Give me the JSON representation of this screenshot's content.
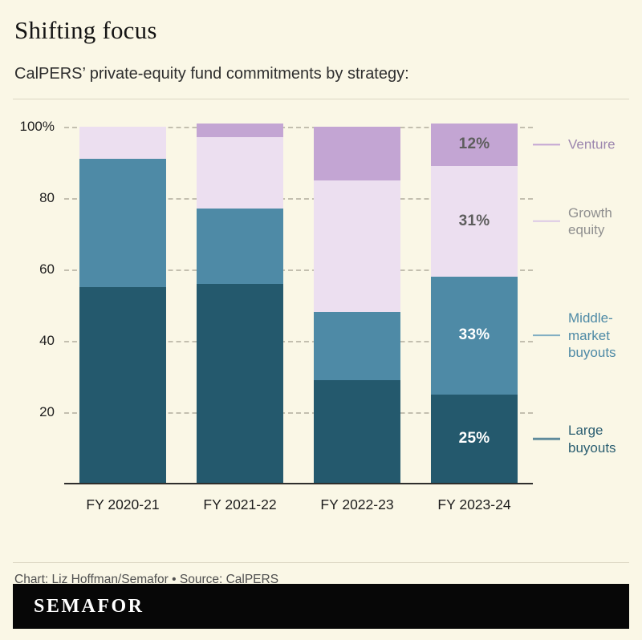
{
  "header": {
    "title": "Shifting focus",
    "subtitle": "CalPERS’ private-equity fund commitments by strategy:"
  },
  "chart_data": {
    "type": "bar",
    "subtype": "stacked",
    "title": "Shifting focus",
    "subtitle": "CalPERS’ private-equity fund commitments by strategy:",
    "categories": [
      "FY 2020-21",
      "FY 2021-22",
      "FY 2022-23",
      "FY 2023-24"
    ],
    "series": [
      {
        "name": "Large buyouts",
        "color": "#24596d",
        "values": [
          55,
          56,
          29,
          25
        ],
        "pct_label": "25%",
        "pct_label_color": "#ffffff"
      },
      {
        "name": "Middle-market buyouts",
        "color": "#4e8aa6",
        "values": [
          36,
          21,
          19,
          33
        ],
        "pct_label": "33%",
        "pct_label_color": "#ffffff"
      },
      {
        "name": "Growth equity",
        "color": "#ecdff0",
        "values": [
          9,
          20,
          37,
          31
        ],
        "pct_label": "31%",
        "pct_label_color": "#5d5d5d"
      },
      {
        "name": "Venture",
        "color": "#c3a5d3",
        "values": [
          0,
          4,
          15,
          12
        ],
        "pct_label": "12%",
        "pct_label_color": "#5d5d5d"
      }
    ],
    "label_bar_index": 3,
    "y_ticks": [
      {
        "value": 100,
        "label": "100%"
      },
      {
        "value": 80,
        "label": "80"
      },
      {
        "value": 60,
        "label": "60"
      },
      {
        "value": 40,
        "label": "40"
      },
      {
        "value": 20,
        "label": "20"
      }
    ],
    "ylim": [
      0,
      100
    ],
    "grid": "horizontal-dashed",
    "legend_position": "right",
    "legend": [
      {
        "series": "Venture",
        "label": "Venture",
        "text_color": "#9c86ae",
        "tick_color": "#c3a5d3"
      },
      {
        "series": "Growth equity",
        "label": "Growth equity",
        "text_color": "#8f8f8f",
        "tick_color": "#dcc8e5"
      },
      {
        "series": "Middle-market buyouts",
        "label": "Middle-market buyouts",
        "text_color": "#4e8aa6",
        "tick_color": "#7fadc2"
      },
      {
        "series": "Large buyouts",
        "label": "Large buyouts",
        "text_color": "#2b5e71",
        "tick_color": "#5f8b9c"
      }
    ]
  },
  "footer": {
    "credit": "Chart: Liz Hoffman/Semafor • Source: CalPERS",
    "brand": "SEMAFOR"
  }
}
